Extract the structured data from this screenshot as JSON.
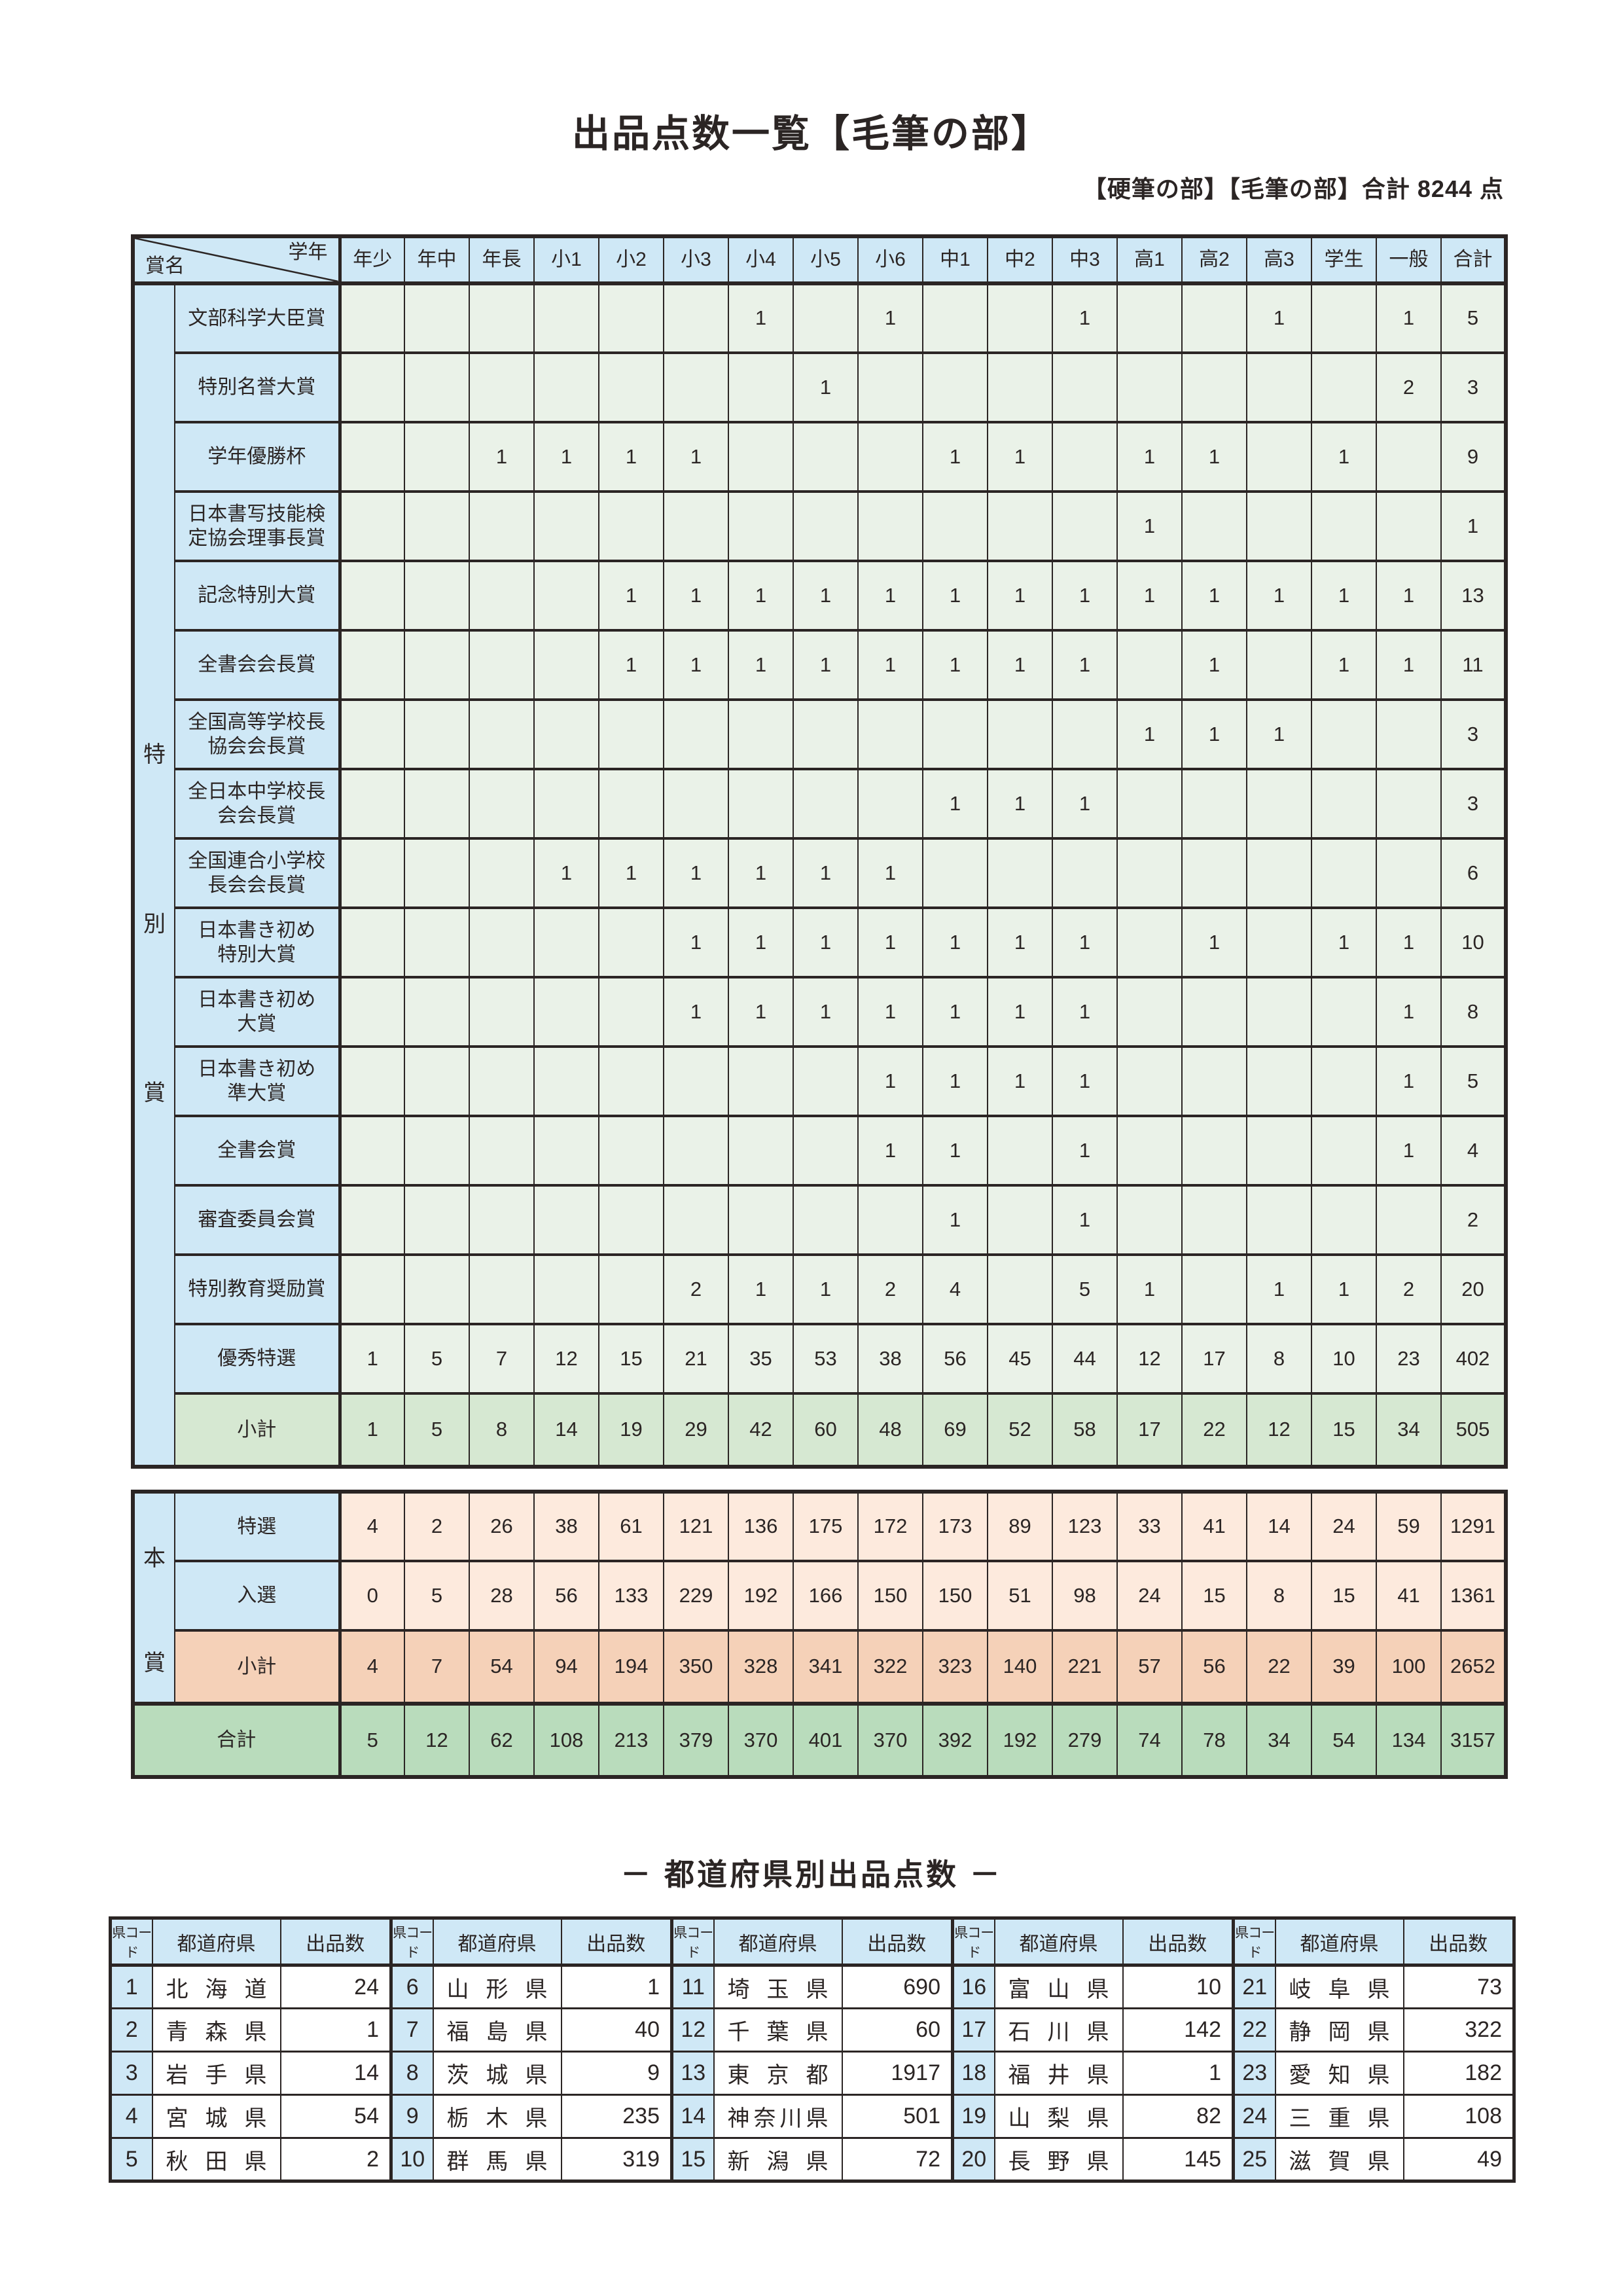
{
  "page": {
    "title": "出品点数一覧【毛筆の部】",
    "subtitle": "【硬筆の部】【毛筆の部】合計 8244 点"
  },
  "colors": {
    "header_blue": "#cfe8f6",
    "cell_green_light": "#eaf2e8",
    "subtotal_green": "#d6e8d2",
    "grand_total_green": "#b9dcbc",
    "cell_peach_light": "#fdeadd",
    "subtotal_peach": "#f5d1b8",
    "border_dark": "#2b2524"
  },
  "awards_table": {
    "corner": {
      "top": "学年",
      "bottom": "賞名"
    },
    "group_label": "特別賞",
    "columns": [
      "年少",
      "年中",
      "年長",
      "小1",
      "小2",
      "小3",
      "小4",
      "小5",
      "小6",
      "中1",
      "中2",
      "中3",
      "高1",
      "高2",
      "高3",
      "学生",
      "一般",
      "合計"
    ],
    "rows": [
      {
        "label": "文部科学大臣賞",
        "type": "award",
        "values": [
          "",
          "",
          "",
          "",
          "",
          "",
          "1",
          "",
          "1",
          "",
          "",
          "1",
          "",
          "",
          "1",
          "",
          "1",
          "5"
        ]
      },
      {
        "label": "特別名誉大賞",
        "type": "award",
        "values": [
          "",
          "",
          "",
          "",
          "",
          "",
          "",
          "1",
          "",
          "",
          "",
          "",
          "",
          "",
          "",
          "",
          "2",
          "3"
        ]
      },
      {
        "label": "学年優勝杯",
        "type": "award",
        "values": [
          "",
          "",
          "1",
          "1",
          "1",
          "1",
          "",
          "",
          "",
          "1",
          "1",
          "",
          "1",
          "1",
          "",
          "1",
          "",
          "9"
        ]
      },
      {
        "label": "日本書写技能検\n定協会理事長賞",
        "type": "award",
        "values": [
          "",
          "",
          "",
          "",
          "",
          "",
          "",
          "",
          "",
          "",
          "",
          "",
          "1",
          "",
          "",
          "",
          "",
          "1"
        ]
      },
      {
        "label": "記念特別大賞",
        "type": "award",
        "values": [
          "",
          "",
          "",
          "",
          "1",
          "1",
          "1",
          "1",
          "1",
          "1",
          "1",
          "1",
          "1",
          "1",
          "1",
          "1",
          "1",
          "13"
        ]
      },
      {
        "label": "全書会会長賞",
        "type": "award",
        "values": [
          "",
          "",
          "",
          "",
          "1",
          "1",
          "1",
          "1",
          "1",
          "1",
          "1",
          "1",
          "",
          "1",
          "",
          "1",
          "1",
          "11"
        ]
      },
      {
        "label": "全国高等学校長\n協会会長賞",
        "type": "award",
        "values": [
          "",
          "",
          "",
          "",
          "",
          "",
          "",
          "",
          "",
          "",
          "",
          "",
          "1",
          "1",
          "1",
          "",
          "",
          "3"
        ]
      },
      {
        "label": "全日本中学校長\n会会長賞",
        "type": "award",
        "values": [
          "",
          "",
          "",
          "",
          "",
          "",
          "",
          "",
          "",
          "1",
          "1",
          "1",
          "",
          "",
          "",
          "",
          "",
          "3"
        ]
      },
      {
        "label": "全国連合小学校\n長会会長賞",
        "type": "award",
        "values": [
          "",
          "",
          "",
          "1",
          "1",
          "1",
          "1",
          "1",
          "1",
          "",
          "",
          "",
          "",
          "",
          "",
          "",
          "",
          "6"
        ]
      },
      {
        "label": "日本書き初め\n特別大賞",
        "type": "award",
        "values": [
          "",
          "",
          "",
          "",
          "",
          "1",
          "1",
          "1",
          "1",
          "1",
          "1",
          "1",
          "",
          "1",
          "",
          "1",
          "1",
          "10"
        ]
      },
      {
        "label": "日本書き初め\n大賞",
        "type": "award",
        "values": [
          "",
          "",
          "",
          "",
          "",
          "1",
          "1",
          "1",
          "1",
          "1",
          "1",
          "1",
          "",
          "",
          "",
          "",
          "1",
          "8"
        ]
      },
      {
        "label": "日本書き初め\n準大賞",
        "type": "award",
        "values": [
          "",
          "",
          "",
          "",
          "",
          "",
          "",
          "",
          "1",
          "1",
          "1",
          "1",
          "",
          "",
          "",
          "",
          "1",
          "5"
        ]
      },
      {
        "label": "全書会賞",
        "type": "award",
        "values": [
          "",
          "",
          "",
          "",
          "",
          "",
          "",
          "",
          "1",
          "1",
          "",
          "1",
          "",
          "",
          "",
          "",
          "1",
          "4"
        ]
      },
      {
        "label": "審査委員会賞",
        "type": "award",
        "values": [
          "",
          "",
          "",
          "",
          "",
          "",
          "",
          "",
          "",
          "1",
          "",
          "1",
          "",
          "",
          "",
          "",
          "",
          "2"
        ]
      },
      {
        "label": "特別教育奨励賞",
        "type": "award",
        "values": [
          "",
          "",
          "",
          "",
          "",
          "2",
          "1",
          "1",
          "2",
          "4",
          "",
          "5",
          "1",
          "",
          "1",
          "1",
          "2",
          "20"
        ]
      },
      {
        "label": "優秀特選",
        "type": "award",
        "values": [
          "1",
          "5",
          "7",
          "12",
          "15",
          "21",
          "35",
          "53",
          "38",
          "56",
          "45",
          "44",
          "12",
          "17",
          "8",
          "10",
          "23",
          "402"
        ]
      },
      {
        "label": "小計",
        "type": "subtotal",
        "values": [
          "1",
          "5",
          "8",
          "14",
          "19",
          "29",
          "42",
          "60",
          "48",
          "69",
          "52",
          "58",
          "17",
          "22",
          "12",
          "15",
          "34",
          "505"
        ]
      }
    ]
  },
  "main_prize_table": {
    "group_label": "本賞",
    "rows": [
      {
        "label": "特選",
        "type": "light",
        "values": [
          "4",
          "2",
          "26",
          "38",
          "61",
          "121",
          "136",
          "175",
          "172",
          "173",
          "89",
          "123",
          "33",
          "41",
          "14",
          "24",
          "59",
          "1291"
        ]
      },
      {
        "label": "入選",
        "type": "light",
        "values": [
          "0",
          "5",
          "28",
          "56",
          "133",
          "229",
          "192",
          "166",
          "150",
          "150",
          "51",
          "98",
          "24",
          "15",
          "8",
          "15",
          "41",
          "1361"
        ]
      },
      {
        "label": "小計",
        "type": "subtotal",
        "values": [
          "4",
          "7",
          "54",
          "94",
          "194",
          "350",
          "328",
          "341",
          "322",
          "323",
          "140",
          "221",
          "57",
          "56",
          "22",
          "39",
          "100",
          "2652"
        ]
      }
    ],
    "total_row": {
      "label": "合計",
      "values": [
        "5",
        "12",
        "62",
        "108",
        "213",
        "379",
        "370",
        "401",
        "370",
        "392",
        "192",
        "279",
        "74",
        "78",
        "34",
        "54",
        "134",
        "3157"
      ]
    }
  },
  "prefecture_section": {
    "title": "－ 都道府県別出品点数 －",
    "headers": {
      "code": "県コード",
      "name": "都道府県",
      "count": "出品数"
    },
    "entries": [
      {
        "code": "1",
        "name": "北海道",
        "count": "24"
      },
      {
        "code": "2",
        "name": "青森県",
        "count": "1"
      },
      {
        "code": "3",
        "name": "岩手県",
        "count": "14"
      },
      {
        "code": "4",
        "name": "宮城県",
        "count": "54"
      },
      {
        "code": "5",
        "name": "秋田県",
        "count": "2"
      },
      {
        "code": "6",
        "name": "山形県",
        "count": "1"
      },
      {
        "code": "7",
        "name": "福島県",
        "count": "40"
      },
      {
        "code": "8",
        "name": "茨城県",
        "count": "9"
      },
      {
        "code": "9",
        "name": "栃木県",
        "count": "235"
      },
      {
        "code": "10",
        "name": "群馬県",
        "count": "319"
      },
      {
        "code": "11",
        "name": "埼玉県",
        "count": "690"
      },
      {
        "code": "12",
        "name": "千葉県",
        "count": "60"
      },
      {
        "code": "13",
        "name": "東京都",
        "count": "1917"
      },
      {
        "code": "14",
        "name": "神奈川県",
        "count": "501"
      },
      {
        "code": "15",
        "name": "新潟県",
        "count": "72"
      },
      {
        "code": "16",
        "name": "富山県",
        "count": "10"
      },
      {
        "code": "17",
        "name": "石川県",
        "count": "142"
      },
      {
        "code": "18",
        "name": "福井県",
        "count": "1"
      },
      {
        "code": "19",
        "name": "山梨県",
        "count": "82"
      },
      {
        "code": "20",
        "name": "長野県",
        "count": "145"
      },
      {
        "code": "21",
        "name": "岐阜県",
        "count": "73"
      },
      {
        "code": "22",
        "name": "静岡県",
        "count": "322"
      },
      {
        "code": "23",
        "name": "愛知県",
        "count": "182"
      },
      {
        "code": "24",
        "name": "三重県",
        "count": "108"
      },
      {
        "code": "25",
        "name": "滋賀県",
        "count": "49"
      }
    ]
  }
}
